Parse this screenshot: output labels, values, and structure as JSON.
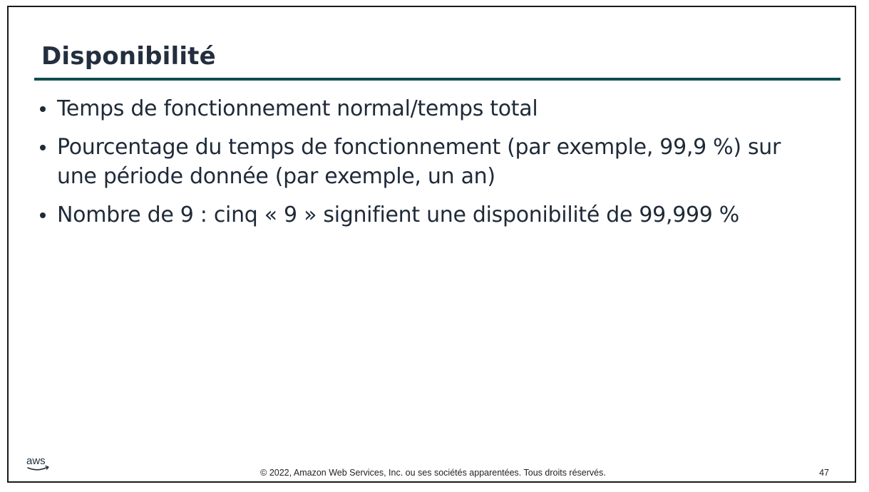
{
  "slide": {
    "title": "Disponibilité",
    "bullets": [
      "Temps de fonctionnement normal/temps total",
      "Pourcentage du temps de fonctionnement (par exemple, 99,9 %) sur une période donnée (par exemple, un an)",
      "Nombre de 9 : cinq « 9 » signifient une disponibilité de 99,999 %"
    ]
  },
  "footer": {
    "logo_text": "aws",
    "copyright": "© 2022, Amazon Web Services, Inc. ou ses sociétés apparentées. Tous droits réservés.",
    "page_number": "47"
  },
  "colors": {
    "title": "#232f3e",
    "rule": "#0f4f4e",
    "text": "#1f2a38",
    "border": "#1a1a1a"
  }
}
